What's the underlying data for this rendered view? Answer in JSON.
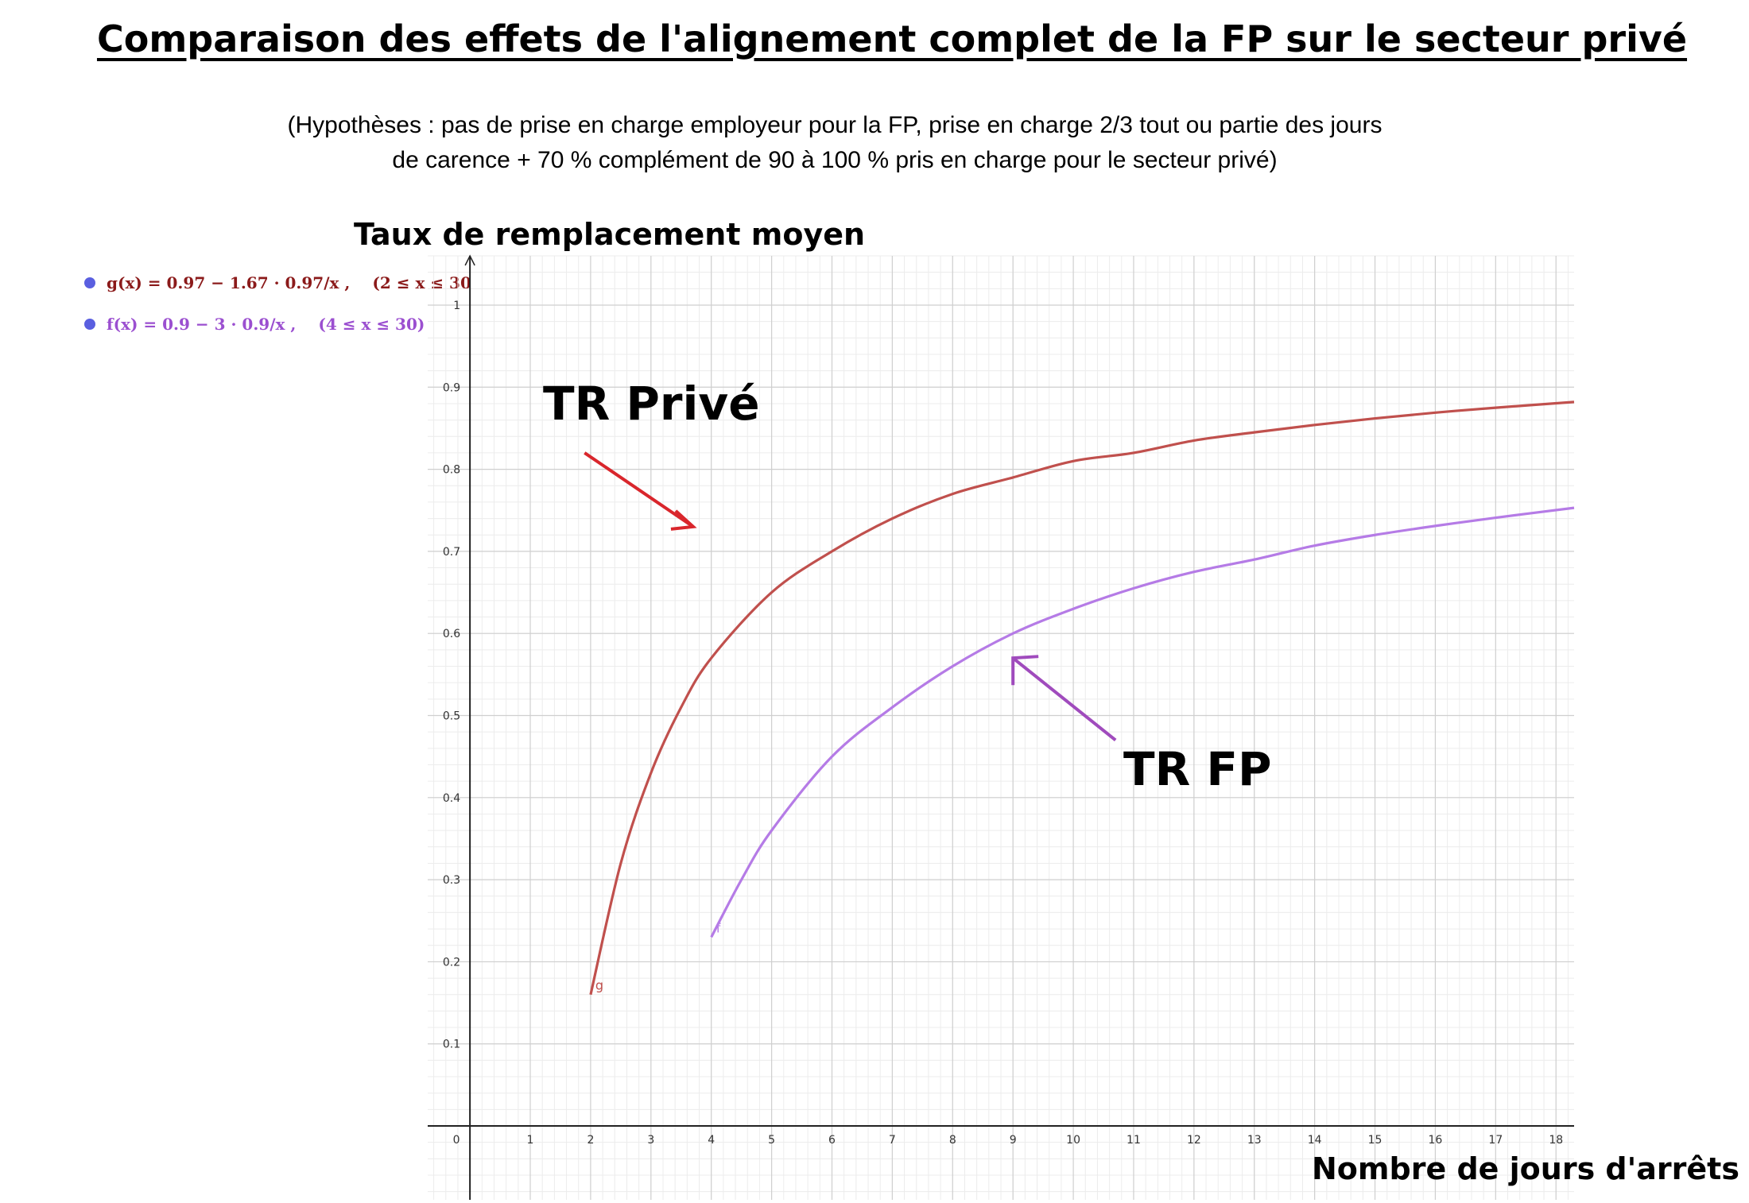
{
  "chart_data": {
    "type": "line",
    "title": "Comparaison des effets de l'alignement complet de la FP sur le secteur privé",
    "subtitle_lines": [
      "(Hypothèses : pas de prise en charge employeur pour la FP, prise en charge 2/3 tout ou partie des jours",
      "de carence + 70 % complément de 90 à 100 % pris en charge  pour le secteur privé)"
    ],
    "ylabel": "Taux de remplacement moyen",
    "xlabel": "Nombre de jours d'arrêts",
    "xlim": [
      -0.7,
      18.3
    ],
    "ylim": [
      -0.09,
      1.06
    ],
    "x_ticks": [
      0,
      1,
      2,
      3,
      4,
      5,
      6,
      7,
      8,
      9,
      10,
      11,
      12,
      13,
      14,
      15,
      16,
      17,
      18
    ],
    "y_ticks": [
      0.1,
      0.2,
      0.3,
      0.4,
      0.5,
      0.6,
      0.7,
      0.8,
      0.9,
      1
    ],
    "grid": true,
    "series": [
      {
        "name": "g",
        "color": "#c0504d",
        "x": [
          2,
          2.5,
          3,
          3.5,
          4,
          5,
          6,
          7,
          8,
          9,
          10,
          11,
          12,
          13,
          14,
          15,
          16,
          17,
          18.3
        ],
        "y": [
          0.16,
          0.32,
          0.43,
          0.51,
          0.57,
          0.65,
          0.7,
          0.74,
          0.77,
          0.79,
          0.81,
          0.82,
          0.835,
          0.845,
          0.854,
          0.862,
          0.869,
          0.875,
          0.882
        ]
      },
      {
        "name": "f",
        "color": "#b57be6",
        "x": [
          4,
          4.5,
          5,
          6,
          7,
          8,
          9,
          10,
          11,
          12,
          13,
          14,
          15,
          16,
          17,
          18.3
        ],
        "y": [
          0.23,
          0.3,
          0.36,
          0.45,
          0.51,
          0.56,
          0.6,
          0.63,
          0.655,
          0.675,
          0.69,
          0.707,
          0.72,
          0.731,
          0.741,
          0.753
        ]
      }
    ],
    "legend": [
      {
        "expr": "g(x) = 0.97 − 1.67 · 0.97/x ,",
        "domain": "(2 ≤ x ≤ 30",
        "color": "#8b1a1a"
      },
      {
        "expr": "f(x) = 0.9 − 3 · 0.9/x ,",
        "domain": "(4 ≤ x ≤ 30)",
        "color": "#9b4fd0"
      }
    ],
    "annotations": [
      {
        "text": "TR Privé",
        "color": "#d9262c"
      },
      {
        "text": "TR FP",
        "color": "#a04bbd"
      }
    ]
  }
}
